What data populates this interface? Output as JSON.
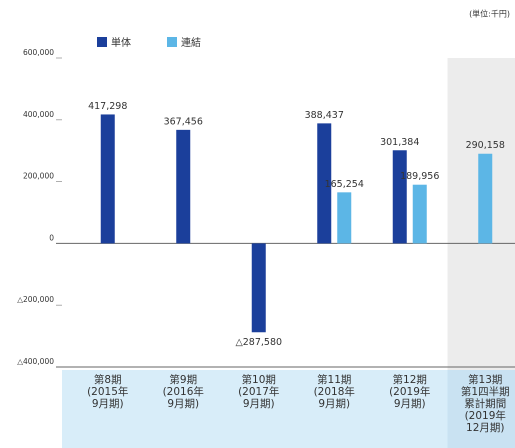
{
  "chart_data": {
    "type": "bar",
    "unit_label": "(単位:千円)",
    "categories": [
      "第8期\n(2015年\n9月期)",
      "第9期\n(2016年\n9月期)",
      "第10期\n(2017年\n9月期)",
      "第11期\n(2018年\n9月期)",
      "第12期\n(2019年\n9月期)",
      "第13期\n第1四半期\n累計期間\n(2019年\n12月期)"
    ],
    "series": [
      {
        "name": "単体",
        "color": "#1b3f9b",
        "values": [
          417298,
          367456,
          -287580,
          388437,
          301384,
          null
        ],
        "value_labels": [
          "417,298",
          "367,456",
          "△287,580",
          "388,437",
          "301,384",
          null
        ]
      },
      {
        "name": "連結",
        "color": "#5cb6e6",
        "values": [
          null,
          null,
          null,
          165254,
          189956,
          290158
        ],
        "value_labels": [
          null,
          null,
          null,
          "165,254",
          "189,956",
          "290,158"
        ]
      }
    ],
    "ylim": [
      -400000,
      600000
    ],
    "yticks": [
      {
        "value": -400000,
        "label": "△400,000"
      },
      {
        "value": -200000,
        "label": "△200,000"
      },
      0,
      {
        "value": 200000,
        "label": "200,000"
      },
      {
        "value": 400000,
        "label": "400,000"
      },
      {
        "value": 600000,
        "label": "600,000"
      }
    ],
    "grid": false,
    "highlight_last_category": true
  }
}
